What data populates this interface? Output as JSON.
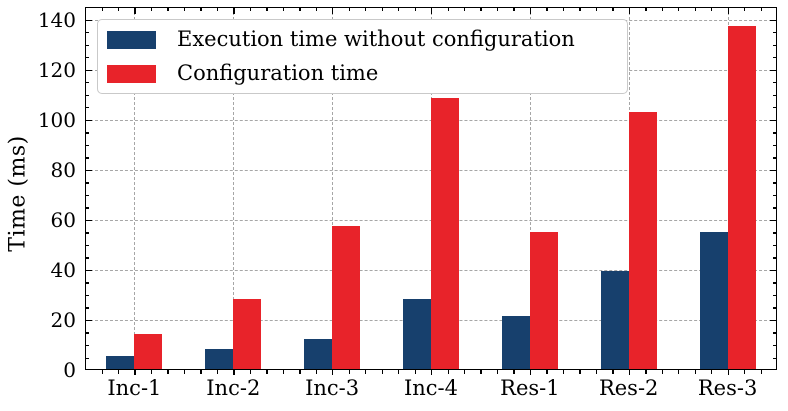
{
  "chart_data": {
    "type": "bar",
    "title": "",
    "xlabel": "",
    "ylabel": "Time (ms)",
    "categories": [
      "Inc-1",
      "Inc-2",
      "Inc-3",
      "Inc-4",
      "Res-1",
      "Res-2",
      "Res-3"
    ],
    "series": [
      {
        "name": "Execution time without configuration",
        "color": "#17406D",
        "values": [
          5.5,
          8.5,
          12.5,
          28.5,
          21.5,
          39.5,
          55
        ]
      },
      {
        "name": "Configuration time",
        "color": "#E8232A",
        "values": [
          14.5,
          28.5,
          57.5,
          108.5,
          55,
          103,
          137.5
        ]
      }
    ],
    "ylim": [
      0,
      145
    ],
    "yticks": [
      0,
      20,
      40,
      60,
      80,
      100,
      120,
      140
    ],
    "grid": {
      "style": "dashed",
      "color": "#A6A6A6",
      "horizontal": true,
      "vertical": true
    },
    "legend": {
      "position": "upper-left",
      "background": "#FFFFFF",
      "border_color": "#C9C9C9"
    },
    "axis_color": "#000000",
    "text_color": "#000000",
    "background": "#FFFFFF"
  }
}
